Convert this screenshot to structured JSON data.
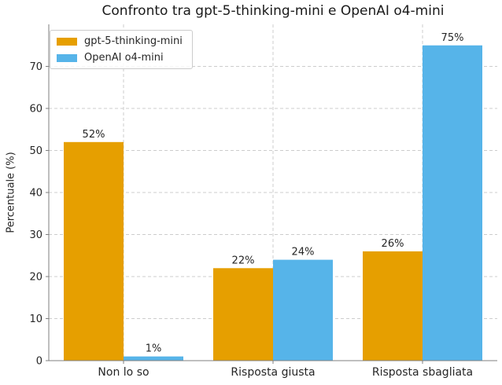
{
  "chart_data": {
    "type": "bar",
    "title": "Confronto tra gpt-5-thinking-mini e OpenAI o4-mini",
    "categories": [
      "Non lo so",
      "Risposta giusta",
      "Risposta sbagliata"
    ],
    "series": [
      {
        "name": "gpt-5-thinking-mini",
        "color": "#E69F00",
        "values": [
          52,
          22,
          26
        ],
        "labels": [
          "52%",
          "22%",
          "26%"
        ]
      },
      {
        "name": "OpenAI o4-mini",
        "color": "#56B4E9",
        "values": [
          1,
          24,
          75
        ],
        "labels": [
          "1%",
          "24%",
          "75%"
        ]
      }
    ],
    "xlabel": "",
    "ylabel": "Percentuale (%)",
    "yticks": [
      0,
      10,
      20,
      30,
      40,
      50,
      60,
      70
    ],
    "ylim": [
      0,
      80
    ],
    "grid": {
      "on": true,
      "style": "dashed",
      "color": "#cccccc",
      "horizontal": true,
      "vertical": true
    },
    "legend": {
      "position": "upper-left"
    },
    "spine_color": "#7f7f7f",
    "text_color": "#262626"
  }
}
